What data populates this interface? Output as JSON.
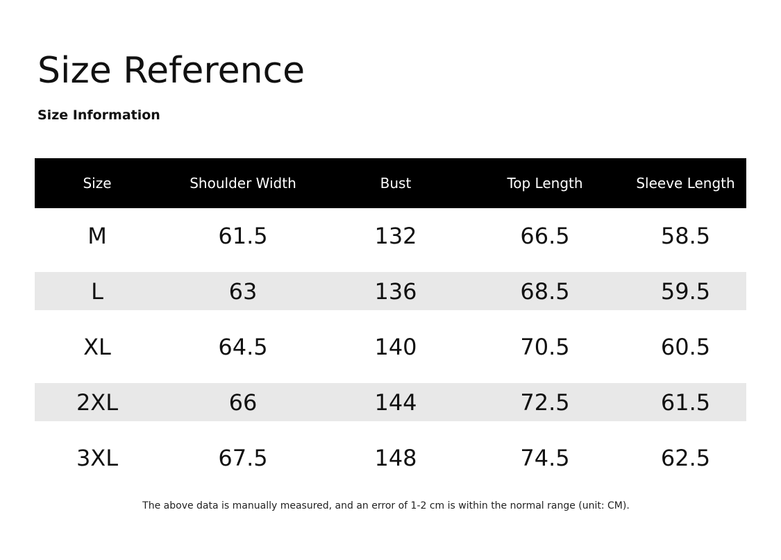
{
  "header": {
    "title": "Size Reference",
    "subtitle": "Size Information"
  },
  "table": {
    "columns": [
      "Size",
      "Shoulder Width",
      "Bust",
      "Top Length",
      "Sleeve Length"
    ],
    "rows": [
      [
        "M",
        "61.5",
        "132",
        "66.5",
        "58.5"
      ],
      [
        "L",
        "63",
        "136",
        "68.5",
        "59.5"
      ],
      [
        "XL",
        "64.5",
        "140",
        "70.5",
        "60.5"
      ],
      [
        "2XL",
        "66",
        "144",
        "72.5",
        "61.5"
      ],
      [
        "3XL",
        "67.5",
        "148",
        "74.5",
        "62.5"
      ]
    ]
  },
  "footer": {
    "note": "The above data is manually measured, and an error of 1-2 cm is within the normal range (unit: CM)."
  }
}
